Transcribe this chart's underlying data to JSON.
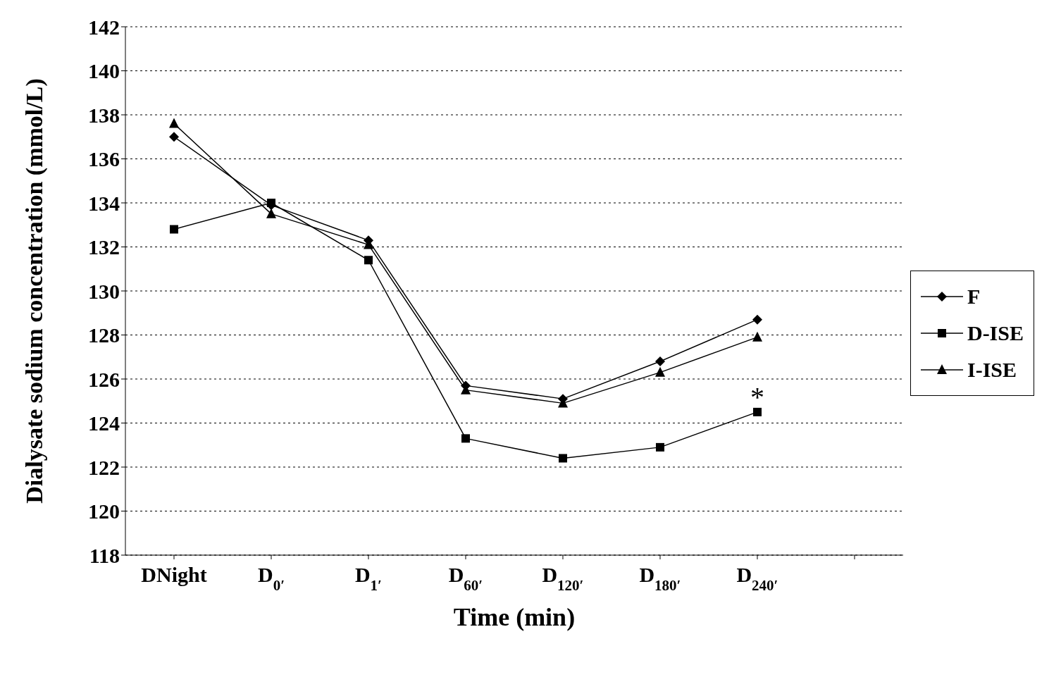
{
  "chart_data": {
    "type": "line",
    "xlabel": "Time (min)",
    "ylabel": "Dialysate sodium concentration (mmol/L)",
    "categories": [
      "DNight",
      "D$_{0′}$",
      "D$_{1′}$",
      "D$_{60′}$",
      "D$_{120′}$",
      "D$_{180′}$",
      "D$_{240′}$",
      null
    ],
    "series": [
      {
        "name": "F",
        "color": "#000000",
        "marker": "diamond",
        "values": [
          137.0,
          133.9,
          132.3,
          125.7,
          125.1,
          126.8,
          128.7,
          null
        ]
      },
      {
        "name": "D-ISE",
        "color": "#000000",
        "marker": "square",
        "values": [
          132.8,
          134.0,
          131.4,
          123.3,
          122.4,
          122.9,
          124.5,
          null
        ]
      },
      {
        "name": "I-ISE",
        "color": "#000000",
        "marker": "triangle",
        "values": [
          137.6,
          133.5,
          132.1,
          125.5,
          124.9,
          126.3,
          127.9,
          null
        ]
      }
    ],
    "ylim": [
      118,
      142
    ],
    "yticks": [
      118,
      120,
      122,
      124,
      126,
      128,
      130,
      132,
      134,
      136,
      138,
      140,
      142
    ],
    "grid": "y",
    "legend": "right",
    "line_style": "solid",
    "annotations": [
      {
        "text": "*",
        "x": "D$_{240′}$",
        "y": 124.5
      }
    ]
  }
}
